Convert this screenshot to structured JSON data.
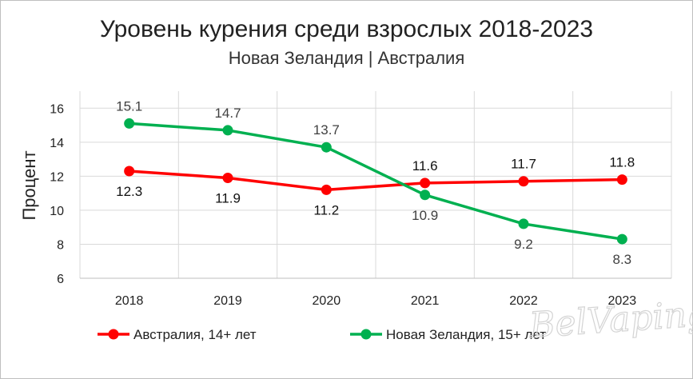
{
  "chart_data": {
    "type": "line",
    "title": "Уровень курения среди взрослых 2018-2023",
    "subtitle": "Новая Зеландия | Австралия",
    "xlabel": "",
    "ylabel": "Процент",
    "categories": [
      "2018",
      "2019",
      "2020",
      "2021",
      "2022",
      "2023"
    ],
    "yticks": [
      "6",
      "8",
      "10",
      "12",
      "14",
      "16"
    ],
    "ylim": [
      6,
      17
    ],
    "grid": true,
    "legend_position": "bottom",
    "series": [
      {
        "name": "Австралия, 14+ лет",
        "color": "#ff0000",
        "values": [
          12.3,
          11.9,
          11.2,
          11.6,
          11.7,
          11.8
        ],
        "labels": [
          "12.3",
          "11.9",
          "11.2",
          "11.6",
          "11.7",
          "11.8"
        ],
        "label_side": [
          "below",
          "below",
          "below",
          "above",
          "above",
          "above"
        ]
      },
      {
        "name": "Новая Зеландия, 15+ лет",
        "color": "#00b050",
        "values": [
          15.1,
          14.7,
          13.7,
          10.9,
          9.2,
          8.3
        ],
        "labels": [
          "15.1",
          "14.7",
          "13.7",
          "10.9",
          "9.2",
          "8.3"
        ],
        "label_side": [
          "above",
          "above",
          "above",
          "below",
          "below",
          "below"
        ]
      }
    ]
  },
  "watermark": "BelVaping"
}
